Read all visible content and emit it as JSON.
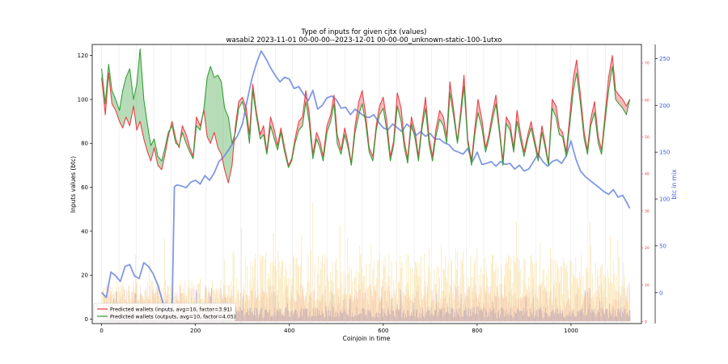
{
  "chart_data": {
    "type": "line",
    "title": "Type of inputs for given cjtx (values)",
    "subtitle": "wasabi2 2023-11-01 00-00-00--2023-12-01 00-00-00_unknown-static-100-1utxo",
    "xlabel": "Coinjoin in time",
    "ylabel_left": "Inputs values (btc)",
    "ylabel_right": "btc in mix",
    "xlim": [
      -20,
      1150
    ],
    "ylim_left": [
      -2,
      125
    ],
    "ylim_middle": [
      -0.5,
      75
    ],
    "ylim_right": [
      -33,
      265
    ],
    "x_ticks": [
      0,
      200,
      400,
      600,
      800,
      1000
    ],
    "y_left_ticks": [
      0,
      20,
      40,
      60,
      80,
      100,
      120
    ],
    "y_middle_ticks": [
      0,
      10,
      20,
      30,
      40,
      50,
      60,
      70
    ],
    "y_right_ticks": [
      0,
      50,
      100,
      150,
      200,
      250
    ],
    "legend_position": "lower-left",
    "legend": [
      {
        "label": "Predicted wallets (inputs, avg=10, factor=3.91)",
        "color": "#e8393f"
      },
      {
        "label": "Predicted wallets (outputs, avg=10, factor=4.05)",
        "color": "#2e9b30"
      }
    ],
    "colors": {
      "inputs": "#e8393f",
      "outputs": "#2e9b30",
      "btc_in_mix": "#6b86e0",
      "middle_axis": "#e8393f",
      "right_axis": "#3a5cd6"
    },
    "series": [
      {
        "name": "Predicted wallets (inputs, avg=10, factor=3.91)",
        "axis": "left",
        "x": [
          0,
          8,
          15,
          22,
          30,
          38,
          45,
          52,
          60,
          68,
          75,
          82,
          90,
          98,
          105,
          112,
          120,
          128,
          135,
          142,
          150,
          158,
          165,
          172,
          180,
          188,
          195,
          202,
          210,
          218,
          225,
          232,
          240,
          248,
          255,
          262,
          270,
          278,
          285,
          292,
          300,
          308,
          315,
          322,
          330,
          338,
          345,
          352,
          360,
          368,
          375,
          382,
          390,
          398,
          405,
          412,
          420,
          428,
          435,
          442,
          450,
          458,
          465,
          472,
          480,
          488,
          495,
          502,
          510,
          518,
          525,
          532,
          540,
          548,
          555,
          562,
          570,
          578,
          585,
          592,
          600,
          608,
          615,
          622,
          630,
          638,
          645,
          652,
          660,
          668,
          675,
          682,
          690,
          698,
          705,
          712,
          720,
          728,
          735,
          742,
          750,
          758,
          765,
          772,
          780,
          788,
          795,
          802,
          810,
          818,
          825,
          832,
          840,
          848,
          855,
          862,
          870,
          878,
          885,
          892,
          900,
          908,
          915,
          922,
          930,
          938,
          945,
          952,
          960,
          968,
          975,
          982,
          990,
          998,
          1005,
          1012,
          1020,
          1028,
          1035,
          1042,
          1050,
          1058,
          1065,
          1072,
          1080,
          1088,
          1095,
          1102,
          1110,
          1118,
          1125
        ],
        "y": [
          110,
          93,
          112,
          98,
          95,
          90,
          87,
          92,
          88,
          97,
          86,
          90,
          82,
          76,
          72,
          78,
          70,
          68,
          75,
          83,
          90,
          82,
          78,
          88,
          84,
          78,
          74,
          92,
          88,
          95,
          83,
          80,
          85,
          78,
          75,
          68,
          62,
          70,
          88,
          99,
          101,
          96,
          84,
          107,
          94,
          84,
          88,
          76,
          92,
          86,
          79,
          87,
          78,
          70,
          73,
          82,
          90,
          92,
          104,
          94,
          75,
          85,
          81,
          74,
          88,
          93,
          102,
          84,
          77,
          87,
          80,
          71,
          88,
          99,
          104,
          94,
          78,
          74,
          88,
          97,
          101,
          89,
          74,
          81,
          103,
          96,
          81,
          73,
          92,
          85,
          74,
          88,
          101,
          82,
          74,
          86,
          95,
          92,
          83,
          108,
          95,
          81,
          95,
          111,
          82,
          72,
          87,
          100,
          91,
          78,
          84,
          93,
          102,
          86,
          72,
          92,
          89,
          78,
          95,
          85,
          76,
          84,
          90,
          82,
          74,
          88,
          80,
          71,
          100,
          97,
          87,
          85,
          76,
          94,
          110,
          118,
          102,
          85,
          77,
          91,
          99,
          83,
          77,
          92,
          110,
          120,
          104,
          102,
          100,
          97,
          100
        ],
        "color": "#e8393f"
      },
      {
        "name": "Predicted wallets (outputs, avg=10, factor=4.05)",
        "axis": "left",
        "x": [
          0,
          8,
          15,
          22,
          30,
          38,
          45,
          52,
          60,
          68,
          75,
          82,
          90,
          98,
          105,
          112,
          120,
          128,
          135,
          142,
          150,
          158,
          165,
          172,
          180,
          188,
          195,
          202,
          210,
          218,
          225,
          232,
          240,
          248,
          255,
          262,
          270,
          278,
          285,
          292,
          300,
          308,
          315,
          322,
          330,
          338,
          345,
          352,
          360,
          368,
          375,
          382,
          390,
          398,
          405,
          412,
          420,
          428,
          435,
          442,
          450,
          458,
          465,
          472,
          480,
          488,
          495,
          502,
          510,
          518,
          525,
          532,
          540,
          548,
          555,
          562,
          570,
          578,
          585,
          592,
          600,
          608,
          615,
          622,
          630,
          638,
          645,
          652,
          660,
          668,
          675,
          682,
          690,
          698,
          705,
          712,
          720,
          728,
          735,
          742,
          750,
          758,
          765,
          772,
          780,
          788,
          795,
          802,
          810,
          818,
          825,
          832,
          840,
          848,
          855,
          862,
          870,
          878,
          885,
          892,
          900,
          908,
          915,
          922,
          930,
          938,
          945,
          952,
          960,
          968,
          975,
          982,
          990,
          998,
          1005,
          1012,
          1020,
          1028,
          1035,
          1042,
          1050,
          1058,
          1065,
          1072,
          1080,
          1088,
          1095,
          1102,
          1110,
          1118,
          1125
        ],
        "y": [
          114,
          98,
          116,
          104,
          100,
          95,
          104,
          110,
          114,
          100,
          107,
          123,
          100,
          88,
          79,
          82,
          74,
          72,
          78,
          85,
          88,
          80,
          79,
          85,
          80,
          76,
          73,
          88,
          86,
          96,
          110,
          115,
          110,
          111,
          108,
          96,
          92,
          80,
          85,
          96,
          99,
          92,
          80,
          104,
          92,
          82,
          84,
          75,
          88,
          82,
          77,
          85,
          76,
          69,
          72,
          80,
          86,
          88,
          99,
          90,
          73,
          82,
          78,
          72,
          85,
          90,
          98,
          80,
          75,
          84,
          78,
          70,
          85,
          93,
          98,
          90,
          76,
          72,
          86,
          93,
          96,
          85,
          72,
          79,
          97,
          90,
          78,
          71,
          89,
          82,
          72,
          86,
          96,
          79,
          72,
          83,
          91,
          88,
          80,
          103,
          92,
          80,
          92,
          106,
          80,
          70,
          84,
          94,
          87,
          76,
          82,
          90,
          98,
          84,
          70,
          89,
          86,
          76,
          90,
          82,
          74,
          82,
          87,
          80,
          72,
          85,
          78,
          70,
          96,
          92,
          84,
          83,
          74,
          90,
          104,
          112,
          98,
          82,
          75,
          88,
          94,
          80,
          75,
          89,
          104,
          115,
          100,
          98,
          96,
          93,
          100
        ],
        "color": "#2e9b30"
      },
      {
        "name": "btc in mix",
        "axis": "right",
        "x": [
          0,
          10,
          20,
          30,
          40,
          50,
          60,
          70,
          80,
          90,
          100,
          110,
          120,
          130,
          140,
          150,
          155,
          160,
          170,
          180,
          190,
          200,
          210,
          220,
          230,
          240,
          250,
          260,
          270,
          280,
          290,
          300,
          310,
          320,
          330,
          340,
          350,
          360,
          370,
          380,
          390,
          400,
          410,
          420,
          430,
          440,
          450,
          460,
          470,
          480,
          490,
          500,
          510,
          520,
          530,
          540,
          550,
          560,
          570,
          580,
          590,
          600,
          610,
          620,
          630,
          640,
          650,
          660,
          670,
          680,
          690,
          700,
          710,
          720,
          730,
          740,
          750,
          760,
          770,
          780,
          790,
          800,
          810,
          820,
          830,
          840,
          850,
          860,
          870,
          880,
          890,
          900,
          910,
          920,
          930,
          940,
          950,
          960,
          970,
          980,
          990,
          1000,
          1010,
          1020,
          1030,
          1040,
          1050,
          1060,
          1070,
          1080,
          1090,
          1100,
          1110,
          1120,
          1125
        ],
        "y": [
          0,
          -5,
          22,
          18,
          12,
          28,
          30,
          18,
          15,
          32,
          28,
          20,
          8,
          -10,
          -20,
          -20,
          113,
          115,
          114,
          112,
          118,
          120,
          116,
          125,
          120,
          128,
          140,
          145,
          152,
          160,
          168,
          180,
          205,
          228,
          245,
          258,
          250,
          240,
          232,
          225,
          230,
          228,
          218,
          220,
          212,
          205,
          216,
          196,
          200,
          208,
          210,
          206,
          197,
          198,
          190,
          196,
          192,
          188,
          187,
          190,
          182,
          176,
          174,
          180,
          176,
          172,
          180,
          176,
          168,
          172,
          167,
          170,
          164,
          164,
          160,
          158,
          152,
          150,
          148,
          154,
          140,
          150,
          137,
          138,
          140,
          135,
          140,
          137,
          138,
          132,
          136,
          130,
          132,
          140,
          148,
          140,
          135,
          140,
          142,
          138,
          146,
          162,
          143,
          130,
          124,
          120,
          116,
          112,
          108,
          105,
          110,
          102,
          104,
          95,
          90
        ],
        "color": "#6b86e0"
      }
    ]
  }
}
